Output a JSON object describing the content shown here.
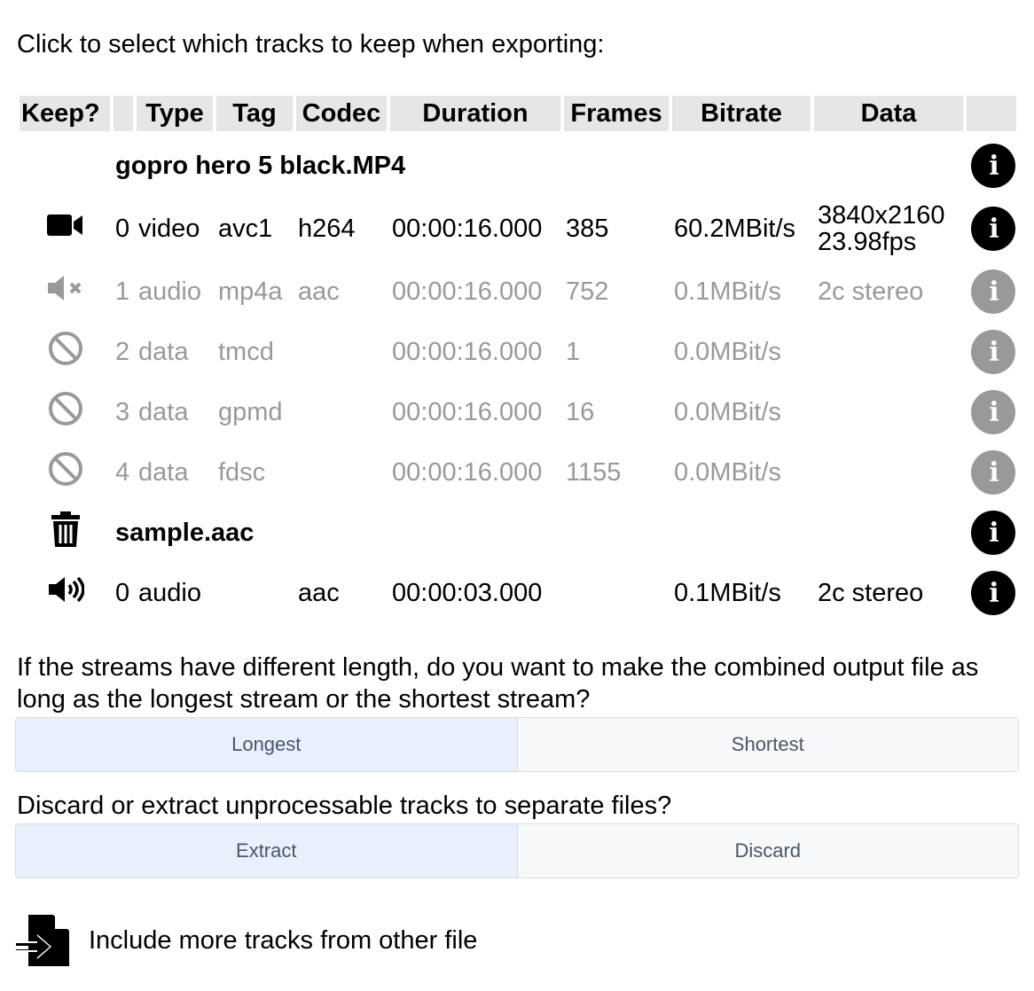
{
  "intro": "Click to select which tracks to keep when exporting:",
  "headers": [
    "Keep?",
    "",
    "Type",
    "Tag",
    "Codec",
    "Duration",
    "Frames",
    "Bitrate",
    "Data",
    ""
  ],
  "files": [
    {
      "name": "gopro hero 5 black.MP4",
      "keep_icon": "",
      "tracks": [
        {
          "icon": "video-camera-icon",
          "index": "0",
          "type": "video",
          "tag": "avc1",
          "codec": "h264",
          "duration": "00:00:16.000",
          "frames": "385",
          "bitrate": "60.2MBit/s",
          "data": "3840x2160",
          "data2": "23.98fps",
          "enabled": true
        },
        {
          "icon": "audio-muted-icon",
          "index": "1",
          "type": "audio",
          "tag": "mp4a",
          "codec": "aac",
          "duration": "00:00:16.000",
          "frames": "752",
          "bitrate": "0.1MBit/s",
          "data": "2c stereo",
          "enabled": false
        },
        {
          "icon": "ban-icon",
          "index": "2",
          "type": "data",
          "tag": "tmcd",
          "codec": "",
          "duration": "00:00:16.000",
          "frames": "1",
          "bitrate": "0.0MBit/s",
          "data": "",
          "enabled": false
        },
        {
          "icon": "ban-icon",
          "index": "3",
          "type": "data",
          "tag": "gpmd",
          "codec": "",
          "duration": "00:00:16.000",
          "frames": "16",
          "bitrate": "0.0MBit/s",
          "data": "",
          "enabled": false
        },
        {
          "icon": "ban-icon",
          "index": "4",
          "type": "data",
          "tag": "fdsc",
          "codec": "",
          "duration": "00:00:16.000",
          "frames": "1155",
          "bitrate": "0.0MBit/s",
          "data": "",
          "enabled": false
        }
      ]
    },
    {
      "name": "sample.aac",
      "keep_icon": "trash-icon",
      "tracks": [
        {
          "icon": "volume-up-icon",
          "index": "0",
          "type": "audio",
          "tag": "",
          "codec": "aac",
          "duration": "00:00:03.000",
          "frames": "",
          "bitrate": "0.1MBit/s",
          "data": "2c stereo",
          "enabled": true
        }
      ]
    }
  ],
  "length_question": "If the streams have different length, do you want to make the combined output file as long as the longest stream or the shortest stream?",
  "length_options": [
    "Longest",
    "Shortest"
  ],
  "length_selected": "Longest",
  "unprocessable_question": "Discard or extract unprocessable tracks to separate files?",
  "unprocessable_options": [
    "Extract",
    "Discard"
  ],
  "unprocessable_selected": "Extract",
  "include_more": "Include more tracks from other file",
  "info_glyph": "i"
}
